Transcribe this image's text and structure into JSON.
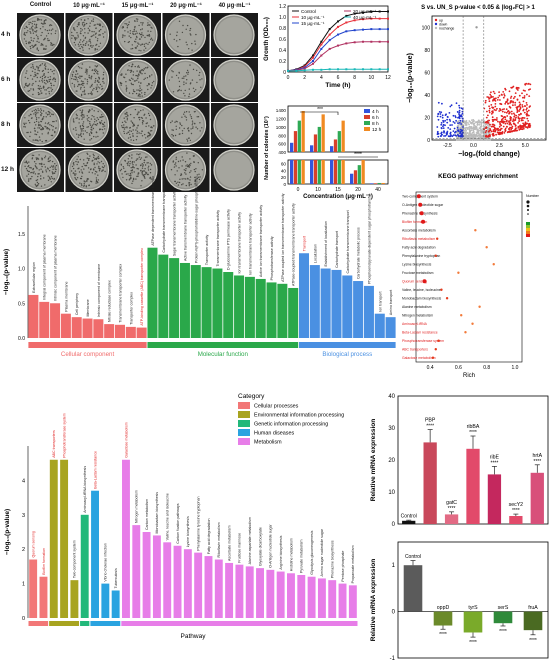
{
  "plates": {
    "col_headers": [
      "Control",
      "10 μg·mL⁻¹",
      "15 μg·mL⁻¹",
      "20 μg·mL⁻¹",
      "40 μg·mL⁻¹"
    ],
    "row_headers": [
      "4 h",
      "6 h",
      "8 h",
      "12 h"
    ],
    "colony_density": [
      [
        1.0,
        1.0,
        0.8,
        0.2,
        0.0
      ],
      [
        1.0,
        1.0,
        0.9,
        0.4,
        0.0
      ],
      [
        1.0,
        1.0,
        0.9,
        0.5,
        0.0
      ],
      [
        1.0,
        1.0,
        1.0,
        0.7,
        0.0
      ]
    ]
  },
  "growth": {
    "ylabel": "Growth (OD₆₀₀)",
    "xlabel": "Time (h)",
    "legend": [
      "Control",
      "10 μg·mL⁻¹",
      "15 μg·mL⁻¹",
      "20 μg·mL⁻¹",
      "40 μg·mL⁻¹"
    ],
    "colors": [
      "#111111",
      "#e8303a",
      "#2244cc",
      "#b03060",
      "#18b8b8"
    ],
    "yticks": [
      "0",
      "0.2",
      "0.4",
      "0.6",
      "0.8",
      "1.0",
      "1.2"
    ],
    "xticks": [
      "0",
      "2",
      "4",
      "6",
      "8",
      "10",
      "12"
    ],
    "chart_data": {
      "type": "line",
      "x": [
        0,
        1,
        2,
        3,
        4,
        5,
        6,
        7,
        8,
        9,
        10,
        11,
        12
      ],
      "series": [
        {
          "name": "Control",
          "values": [
            0.02,
            0.05,
            0.12,
            0.3,
            0.55,
            0.78,
            0.92,
            1.02,
            1.06,
            1.08,
            1.1,
            1.1,
            1.1
          ]
        },
        {
          "name": "10 μg·mL⁻¹",
          "values": [
            0.02,
            0.04,
            0.1,
            0.26,
            0.5,
            0.68,
            0.82,
            0.9,
            0.94,
            0.96,
            0.97,
            0.97,
            0.97
          ]
        },
        {
          "name": "15 μg·mL⁻¹",
          "values": [
            0.02,
            0.04,
            0.08,
            0.2,
            0.42,
            0.58,
            0.68,
            0.74,
            0.76,
            0.77,
            0.78,
            0.78,
            0.78
          ]
        },
        {
          "name": "20 μg·mL⁻¹",
          "values": [
            0.02,
            0.03,
            0.06,
            0.15,
            0.3,
            0.42,
            0.48,
            0.52,
            0.54,
            0.55,
            0.55,
            0.55,
            0.55
          ]
        },
        {
          "name": "40 μg·mL⁻¹",
          "values": [
            0.02,
            0.02,
            0.03,
            0.04,
            0.04,
            0.05,
            0.05,
            0.05,
            0.05,
            0.05,
            0.05,
            0.05,
            0.05
          ]
        }
      ],
      "ylim": [
        0,
        1.2
      ],
      "xlim": [
        0,
        12
      ]
    }
  },
  "colonies": {
    "ylabel": "Number of colonies (10⁷)",
    "xlabel": "Concentration (μg·mL⁻¹)",
    "legend": [
      "4 h",
      "6 h",
      "8 h",
      "12 h"
    ],
    "colors": [
      "#3355dd",
      "#d8402a",
      "#2faa55",
      "#f08a22"
    ],
    "categories": [
      "0",
      "10",
      "15",
      "20",
      "40"
    ],
    "sig": [
      "***",
      "****"
    ],
    "yticks_top": [
      "400",
      "600",
      "800",
      "1000",
      "1200",
      "1400"
    ],
    "yticks_bottom": [
      "0",
      "20",
      "40",
      "60"
    ],
    "chart_data": {
      "type": "bar",
      "categories": [
        "0",
        "10",
        "15",
        "20",
        "40"
      ],
      "series": [
        {
          "name": "4 h",
          "values": [
            620,
            560,
            540,
            30,
            2
          ]
        },
        {
          "name": "6 h",
          "values": [
            900,
            820,
            700,
            40,
            2
          ]
        },
        {
          "name": "8 h",
          "values": [
            1150,
            1000,
            900,
            55,
            3
          ]
        },
        {
          "name": "12 h",
          "values": [
            1380,
            1300,
            1150,
            70,
            3
          ]
        }
      ]
    }
  },
  "volcano": {
    "title": "S vs. UN_S p-value < 0.05 & |log₂FC| > 1",
    "ylabel": "−log₁₀(p-value)",
    "xlabel": "−log₂(fold change)",
    "legend": [
      "up",
      "down",
      "nochange"
    ],
    "xticks": [
      "-2.5",
      "0.0",
      "2.5",
      "5.0"
    ],
    "yticks": [
      "0",
      "20",
      "40",
      "60",
      "80",
      "100"
    ],
    "chart_data": {
      "type": "scatter",
      "xlim": [
        -4,
        7
      ],
      "ylim": [
        0,
        110
      ]
    }
  },
  "go": {
    "ylabel": "−log₁₀(p-value)",
    "yticks": [
      "0.0",
      "0.5",
      "1.0",
      "1.5"
    ],
    "cat_names": [
      "Cellular component",
      "Molecular function",
      "Biological process"
    ],
    "cat_colors": [
      "#f06b6b",
      "#2aa84a",
      "#4a90e2"
    ],
    "chart_data": {
      "type": "bar",
      "categories": [
        "Extracellular region",
        "Integral component of plasma membrane",
        "Intrinsic component of plasma membrane",
        "Plasma membrane",
        "Cell periphery",
        "Membrane",
        "Intrinsic component of membrane",
        "Nitrate reductase complex",
        "Transmembrane transporter complex",
        "Transporter complex",
        "ATP-binding cassette (ABC) transporter complex",
        "ATPase dependent transmembrane transporter complex",
        "Carbohydrate transmembrane transporter activity",
        "Sugar transmembrane transporter activity",
        "Active transmembrane transporter activity",
        "Protein-N(PI)-phosphohistidine-sugar phosphotransferase",
        "Transporter activity",
        "Transmembrane transporter activity",
        "D-glucosamine PTS permease activity",
        "Ion transmembrane transporter activity",
        "Ion transmembrane transporter activity",
        "Active ion transmembrane transporter activity",
        "Phosphotransferase activity",
        "ATPase coupled ion transmembrane transporter activity",
        "ATPase-coupled transmembrane transporter activity",
        "Transport",
        "Localization",
        "Establishment of localization",
        "Carbohydrate transport",
        "Carbohydrate transmembrane transport",
        "Carbohydrate metabolic process",
        "Phosphoenolpyruvate-dependent sugar phosphotransfer",
        "Ion transport",
        "Amino transport"
      ],
      "values": [
        0.62,
        0.52,
        0.5,
        0.35,
        0.3,
        0.28,
        0.27,
        0.2,
        0.19,
        0.16,
        0.15,
        1.3,
        1.2,
        1.15,
        1.08,
        1.05,
        1.02,
        1.0,
        0.95,
        0.9,
        0.88,
        0.85,
        0.8,
        0.78,
        0.72,
        1.22,
        1.05,
        1.0,
        0.98,
        0.9,
        0.82,
        0.75,
        0.35,
        0.3
      ],
      "groups": [
        11,
        14,
        9
      ],
      "highlight": [
        10,
        25
      ]
    }
  },
  "kegg": {
    "title": "KEGG pathway enrichment",
    "xlabel": "Rich",
    "xticks": [
      "0.4",
      "0.6",
      "0.8",
      "1.0"
    ],
    "legend_title": "Number",
    "chart_data": {
      "type": "scatter",
      "categories": [
        "Two-component system",
        "O-Antigen nucleotide sugar",
        "Phenazine biosynthesis",
        "Biofilm formation",
        "Ascorbate metabolism",
        "Riboflavin metabolism",
        "Fatty acid degradation",
        "Phenylalanine tryptophan",
        "Lysine biosynthesis",
        "Fructose metabolism",
        "Quorum sensing",
        "Valine, leucine, isoleucine",
        "Monobactam biosynthesis",
        "Alanine metabolism",
        "Nitrogen metabolism",
        "Aminoacyl-tRNA",
        "Beta-Lactam resistance",
        "Phosphotransferase system",
        "ABC transporters",
        "Galactose metabolism"
      ],
      "x": [
        0.32,
        0.33,
        0.34,
        0.35,
        0.72,
        0.45,
        0.8,
        0.44,
        0.85,
        0.6,
        0.36,
        0.48,
        0.52,
        0.75,
        0.62,
        0.7,
        0.65,
        0.46,
        0.44,
        0.42
      ],
      "highlight": [
        3,
        5,
        10,
        15,
        16,
        17,
        18,
        19
      ]
    }
  },
  "pathway": {
    "ylabel": "−log₁₀(p-value)",
    "xlabel": "Pathway",
    "yticks": [
      "0",
      "1",
      "2",
      "3",
      "4"
    ],
    "legend_title": "Category",
    "cat_names": [
      "Cellular processes",
      "Environmental information processing",
      "Genetic information processing",
      "Human diseases",
      "Metabolism"
    ],
    "cat_colors": [
      "#f27777",
      "#a8a420",
      "#22b87a",
      "#2aa3e0",
      "#e77de8"
    ],
    "chart_data": {
      "type": "bar",
      "categories": [
        "Quorum sensing",
        "Biofilm formation",
        "ABC transporters",
        "Phosphotransferase system",
        "Two-component system",
        "Aminoacyl-tRNA biosynthesis",
        "Beta-Lactam resistance",
        "Vibrio cholerae infection",
        "Tuberculosis",
        "Galactose metabolism",
        "Nitrogen metabolism",
        "Carbon metabolism",
        "Monobactam biosynthesis",
        "Valine, leucine and isoleucine",
        "Carbon fixation pathways",
        "Lysine biosynthesis",
        "Phenylalanine tyrosine tryptophan",
        "Fatty acid degradation",
        "Riboflavin metabolism",
        "Ascorbate metabolism",
        "Fructose mannose",
        "Alanine aspartate metabolism",
        "Glyoxylate dicarboxylate",
        "O-Antigen nucleotide sugar",
        "Arginine biosynthesis",
        "Histidine metabolism",
        "Pyruvate metabolism",
        "Glycolysis gluconeogenesis",
        "Amino sugar nucleotide sugar",
        "Phenazine biosynthesis",
        "Pentose phosphate",
        "Propanoate metabolism"
      ],
      "values": [
        1.7,
        1.2,
        4.6,
        4.6,
        1.1,
        3.0,
        3.7,
        1.0,
        0.8,
        4.6,
        2.7,
        2.5,
        2.4,
        2.2,
        2.1,
        2.0,
        1.9,
        1.8,
        1.7,
        1.6,
        1.55,
        1.5,
        1.45,
        1.4,
        1.35,
        1.3,
        1.25,
        1.2,
        1.15,
        1.1,
        1.0,
        0.95
      ],
      "cats": [
        0,
        0,
        1,
        1,
        1,
        2,
        3,
        3,
        3,
        4,
        4,
        4,
        4,
        4,
        4,
        4,
        4,
        4,
        4,
        4,
        4,
        4,
        4,
        4,
        4,
        4,
        4,
        4,
        4,
        4,
        4,
        4
      ],
      "highlight": [
        0,
        1,
        2,
        3,
        6,
        9
      ],
      "ylim": [
        0,
        5
      ]
    }
  },
  "mrna_up": {
    "ylabel": "Relative mRNA expression",
    "yticks": [
      "0",
      "10",
      "20",
      "30",
      "40"
    ],
    "sig": "****",
    "chart_data": {
      "type": "bar",
      "categories": [
        "Control",
        "PBP",
        "gatC",
        "ribBA",
        "ribE",
        "secY2",
        "hrtA"
      ],
      "values": [
        1,
        25.5,
        3,
        23.5,
        15.5,
        2.5,
        16
      ],
      "errors": [
        0.2,
        4,
        0.8,
        4,
        2.5,
        0.6,
        2.5
      ],
      "colors": [
        "#111111",
        "#c9485b",
        "#e26a84",
        "#e24a6a",
        "#c4285e",
        "#e24a6a",
        "#d8507a"
      ],
      "ylim": [
        0,
        40
      ]
    }
  },
  "mrna_down": {
    "ylabel": "Relative mRNA expression",
    "yticks": [
      "-1",
      "0",
      "1"
    ],
    "sig": "****",
    "chart_data": {
      "type": "bar",
      "categories": [
        "Control",
        "oppD",
        "tyrS",
        "serS",
        "fruA"
      ],
      "values": [
        1,
        -0.3,
        -0.45,
        -0.25,
        -0.4
      ],
      "errors": [
        0.1,
        0.08,
        0.1,
        0.06,
        0.1
      ],
      "colors": [
        "#5b5b5b",
        "#6b8a2a",
        "#7aaa2a",
        "#2f8a3a",
        "#4a6a22"
      ],
      "ylim": [
        -1,
        1.5
      ]
    }
  }
}
